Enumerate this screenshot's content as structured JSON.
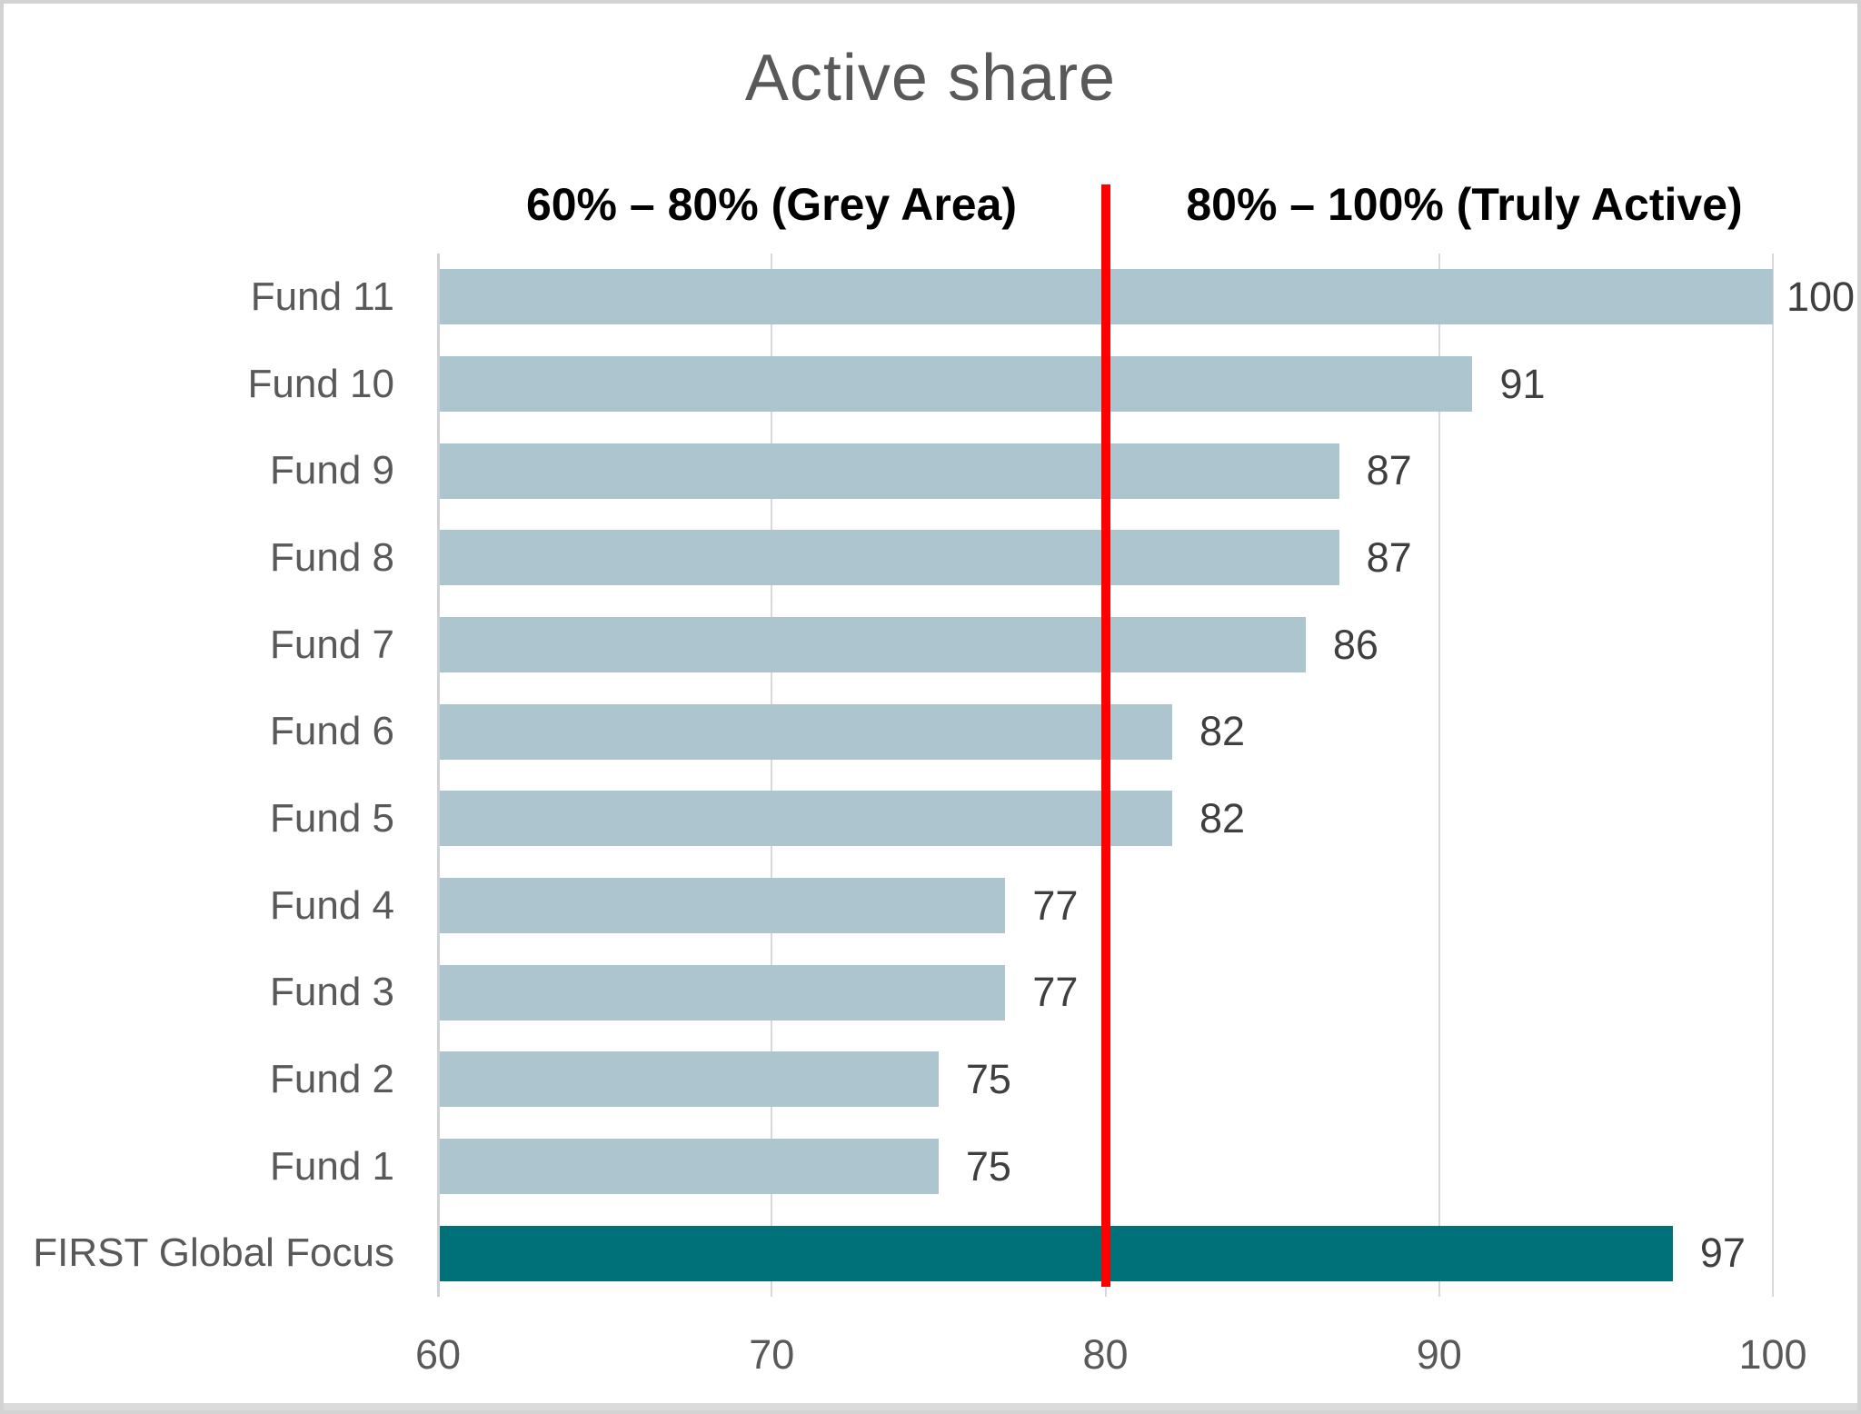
{
  "chart_data": {
    "type": "bar",
    "orientation": "horizontal",
    "title": "Active share",
    "annotations": [
      {
        "label": "60% – 80% (Grey Area)"
      },
      {
        "label": "80% – 100% (Truly Active)"
      }
    ],
    "categories": [
      "Fund 11",
      "Fund 10",
      "Fund 9",
      "Fund 8",
      "Fund 7",
      "Fund 6",
      "Fund 5",
      "Fund 4",
      "Fund 3",
      "Fund 2",
      "Fund 1",
      "FIRST Global Focus"
    ],
    "values": [
      100,
      91,
      87,
      87,
      86,
      82,
      82,
      77,
      77,
      75,
      75,
      97
    ],
    "highlight_category": "FIRST Global Focus",
    "xlim": [
      60,
      100
    ],
    "xticks": [
      60,
      70,
      80,
      90,
      100
    ],
    "reference_line": {
      "x": 80
    },
    "grid": true,
    "legend": "none",
    "colors": {
      "bar": "#acc5ce",
      "highlight_bar": "#007178",
      "reference_line": "#ff0000",
      "gridline": "#d9d9d9",
      "axis_line": "#cfd2d4",
      "title_text": "#595959",
      "category_text": "#595959",
      "value_text": "#3f3f3f",
      "annotation_text": "#000000"
    }
  }
}
